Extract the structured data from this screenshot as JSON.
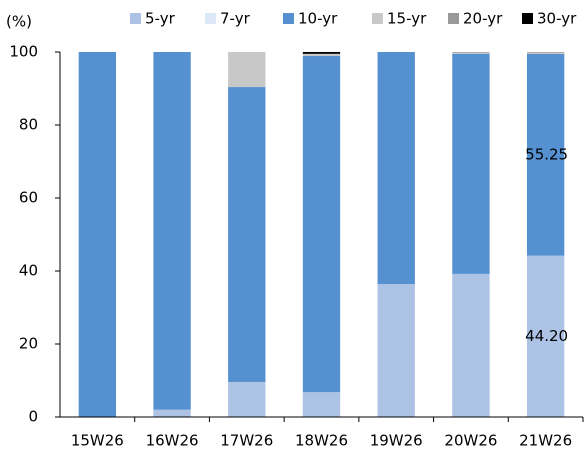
{
  "chart_data": {
    "type": "stacked_bar",
    "y_label": "(%)",
    "categories": [
      "15W26",
      "16W26",
      "17W26",
      "18W26",
      "19W26",
      "20W26",
      "21W26"
    ],
    "series": [
      {
        "name": "5-yr",
        "color": "#adc3e6",
        "values": [
          0,
          2,
          9.6,
          6.8,
          36.4,
          39.2,
          44.2
        ],
        "value_labels": [
          null,
          null,
          null,
          null,
          null,
          null,
          "44.20"
        ]
      },
      {
        "name": "7-yr",
        "color": "#dde8f6",
        "values": [
          0,
          0,
          0,
          0,
          0,
          0,
          0
        ]
      },
      {
        "name": "10-yr",
        "color": "#5591d0",
        "values": [
          100,
          98,
          80.8,
          92.1,
          63.6,
          60.3,
          55.25
        ],
        "value_labels": [
          null,
          null,
          null,
          null,
          null,
          null,
          "55.25"
        ]
      },
      {
        "name": "15-yr",
        "color": "#c8c8c8",
        "values": [
          0,
          0,
          9.6,
          0.6,
          0,
          0.3,
          0.4
        ]
      },
      {
        "name": "20-yr",
        "color": "#999999",
        "values": [
          0,
          0,
          0,
          0,
          0,
          0.2,
          0.15
        ]
      },
      {
        "name": "30-yr",
        "color": "#000000",
        "values": [
          0,
          0,
          0,
          0.5,
          0,
          0,
          0
        ]
      }
    ],
    "ylim": [
      0,
      100
    ],
    "yticks": [
      0,
      20,
      40,
      60,
      80,
      100
    ]
  }
}
